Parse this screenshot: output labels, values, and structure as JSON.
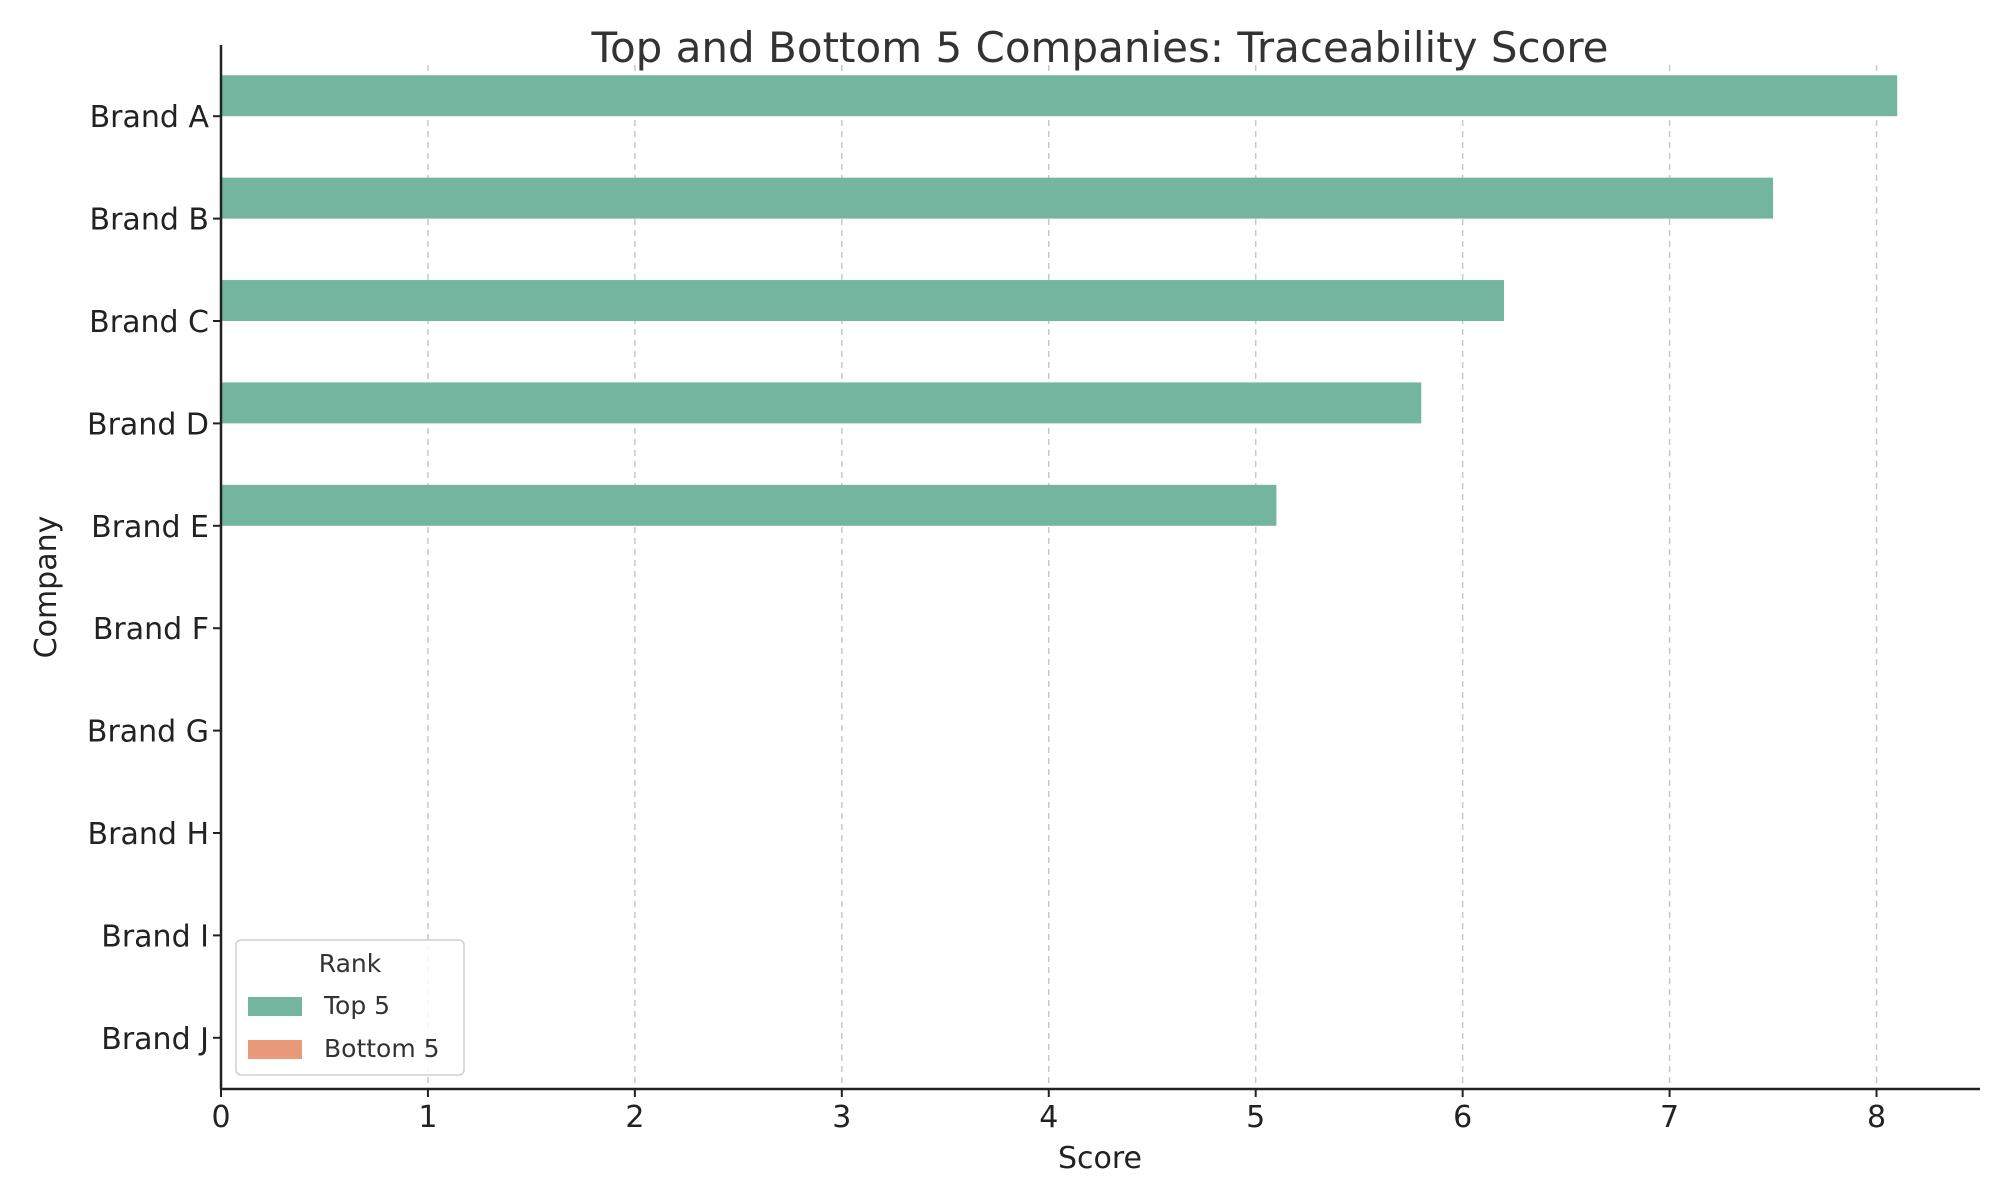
{
  "chart_data": {
    "type": "bar",
    "orientation": "horizontal",
    "title": "Top and Bottom 5 Companies: Traceability Score",
    "xlabel": "Score",
    "ylabel": "Company",
    "categories": [
      "Brand A",
      "Brand B",
      "Brand C",
      "Brand D",
      "Brand E",
      "Brand F",
      "Brand G",
      "Brand H",
      "Brand I",
      "Brand J"
    ],
    "series": [
      {
        "name": "Top 5",
        "color": "#74b59f",
        "values": [
          8.1,
          7.5,
          6.2,
          5.8,
          5.1,
          null,
          null,
          null,
          null,
          null
        ]
      },
      {
        "name": "Bottom 5",
        "color": "#ea9a7a",
        "values": [
          null,
          null,
          null,
          null,
          null,
          null,
          null,
          null,
          null,
          null
        ]
      }
    ],
    "xlim": [
      0,
      8.5
    ],
    "xticks": [
      0,
      1,
      2,
      3,
      4,
      5,
      6,
      7,
      8
    ],
    "grid": "x-dashed",
    "legend": {
      "title": "Rank",
      "position": "lower-left"
    }
  }
}
